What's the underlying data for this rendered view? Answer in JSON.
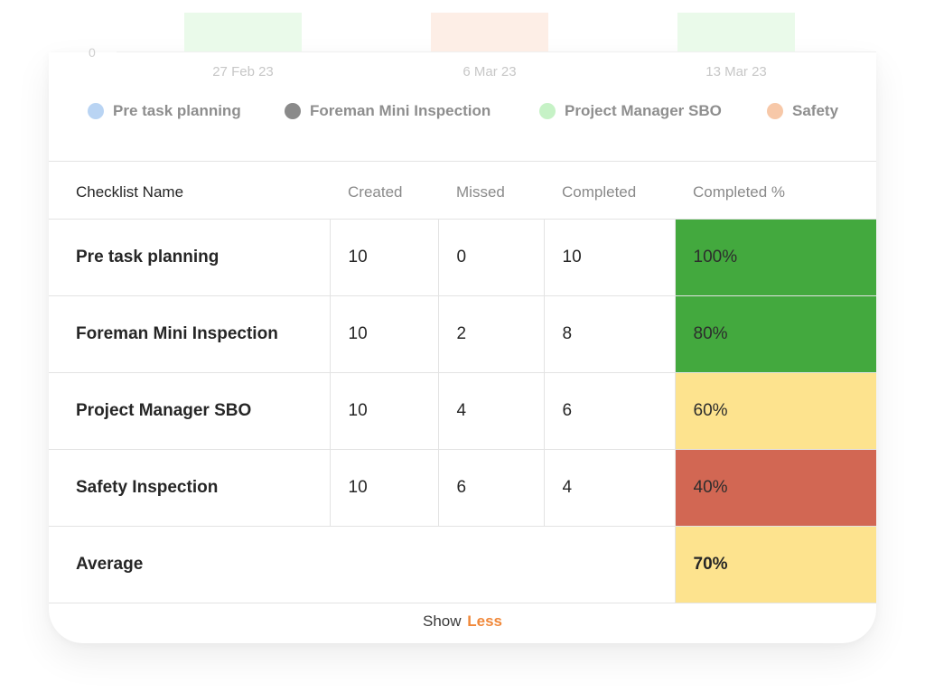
{
  "chart": {
    "y_zero_label": "0",
    "x_ticks": [
      "27 Feb 23",
      "6 Mar 23",
      "13 Mar 23"
    ]
  },
  "legend": [
    {
      "label": "Pre task planning",
      "color": "#b9d4f3"
    },
    {
      "label": "Foreman Mini Inspection",
      "color": "#8a8a8a"
    },
    {
      "label": "Project Manager SBO",
      "color": "#c6f2c6"
    },
    {
      "label": "Safety",
      "color": "#f7c8a8"
    }
  ],
  "table": {
    "headers": {
      "name": "Checklist Name",
      "created": "Created",
      "missed": "Missed",
      "completed": "Completed",
      "pct": "Completed %"
    },
    "rows": [
      {
        "name": "Pre task planning",
        "created": "10",
        "missed": "0",
        "completed": "10",
        "pct": "100%",
        "pct_color": "#43a93e"
      },
      {
        "name": "Foreman Mini Inspection",
        "created": "10",
        "missed": "2",
        "completed": "8",
        "pct": "80%",
        "pct_color": "#43a93e"
      },
      {
        "name": "Project Manager SBO",
        "created": "10",
        "missed": "4",
        "completed": "6",
        "pct": "60%",
        "pct_color": "#fde38e"
      },
      {
        "name": "Safety Inspection",
        "created": "10",
        "missed": "6",
        "completed": "4",
        "pct": "40%",
        "pct_color": "#d26753"
      }
    ],
    "average": {
      "label": "Average",
      "pct": "70%",
      "pct_color": "#fde38e"
    }
  },
  "footer": {
    "show_label": "Show",
    "toggle_label": "Less",
    "accent_color": "#f0883a"
  }
}
